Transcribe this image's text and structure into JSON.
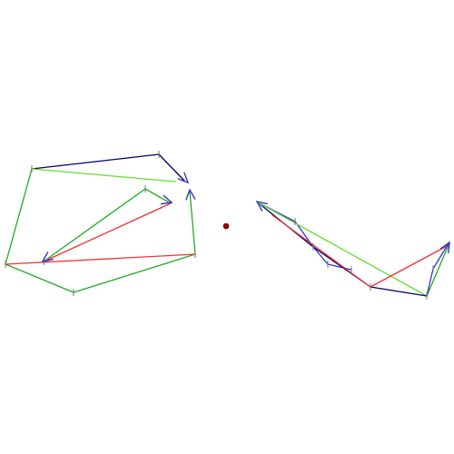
{
  "colors": {
    "background": "#ffffff",
    "navy": "#000066",
    "blue": "#3333cc",
    "green": "#22aa22",
    "lime": "#66dd33",
    "red": "#ee3333",
    "tick": "#777777",
    "center_dot": "#aa0000"
  },
  "diagram": {
    "center_point": [
      249,
      249
    ],
    "segments": [
      {
        "id": "L-top-dark",
        "from": [
          35,
          186
        ],
        "to": [
          175,
          170
        ],
        "color": "navy"
      },
      {
        "id": "L-top-dark-2",
        "from": [
          175,
          170
        ],
        "to": [
          203,
          199
        ],
        "color": "navy"
      },
      {
        "id": "L-top-green",
        "from": [
          35,
          186
        ],
        "to": [
          193,
          200
        ],
        "color": "lime"
      },
      {
        "id": "L-left-outer",
        "from": [
          35,
          186
        ],
        "to": [
          6,
          291
        ],
        "color": "green"
      },
      {
        "id": "L-bottom-1",
        "from": [
          6,
          291
        ],
        "to": [
          81,
          322
        ],
        "color": "green"
      },
      {
        "id": "L-bottom-2",
        "from": [
          81,
          322
        ],
        "to": [
          215,
          280
        ],
        "color": "green"
      },
      {
        "id": "L-red-long",
        "from": [
          6,
          291
        ],
        "to": [
          215,
          280
        ],
        "color": "red"
      },
      {
        "id": "L-right-edge",
        "from": [
          215,
          280
        ],
        "to": [
          209,
          210
        ],
        "color": "green"
      },
      {
        "id": "L-inner-green-1",
        "from": [
          48,
          288
        ],
        "to": [
          160,
          208
        ],
        "color": "green"
      },
      {
        "id": "L-inner-green-2",
        "from": [
          160,
          208
        ],
        "to": [
          188,
          224
        ],
        "color": "green"
      },
      {
        "id": "L-red-inner",
        "from": [
          48,
          288
        ],
        "to": [
          188,
          224
        ],
        "color": "red"
      },
      {
        "id": "R-navy-1",
        "from": [
          284,
          223
        ],
        "to": [
          345,
          272
        ],
        "color": "navy"
      },
      {
        "id": "R-blue-1",
        "from": [
          284,
          223
        ],
        "to": [
          325,
          244
        ],
        "color": "blue"
      },
      {
        "id": "R-blue-2",
        "from": [
          325,
          244
        ],
        "to": [
          345,
          272
        ],
        "color": "blue"
      },
      {
        "id": "R-blue-3",
        "from": [
          345,
          272
        ],
        "to": [
          361,
          291
        ],
        "color": "blue"
      },
      {
        "id": "R-blue-4",
        "from": [
          361,
          291
        ],
        "to": [
          387,
          297
        ],
        "color": "blue"
      },
      {
        "id": "R-navy-2",
        "from": [
          345,
          272
        ],
        "to": [
          408,
          316
        ],
        "color": "navy"
      },
      {
        "id": "R-green-long",
        "from": [
          284,
          223
        ],
        "to": [
          470,
          326
        ],
        "color": "lime"
      },
      {
        "id": "R-red-1",
        "from": [
          300,
          237
        ],
        "to": [
          408,
          316
        ],
        "color": "red"
      },
      {
        "id": "R-navy-3",
        "from": [
          408,
          316
        ],
        "to": [
          470,
          326
        ],
        "color": "navy"
      },
      {
        "id": "R-red-2",
        "from": [
          408,
          316
        ],
        "to": [
          494,
          270
        ],
        "color": "red"
      },
      {
        "id": "R-green-up",
        "from": [
          470,
          326
        ],
        "to": [
          494,
          270
        ],
        "color": "green"
      },
      {
        "id": "R-blue-5",
        "from": [
          470,
          326
        ],
        "to": [
          477,
          296
        ],
        "color": "blue"
      },
      {
        "id": "R-blue-6",
        "from": [
          477,
          296
        ],
        "to": [
          494,
          268
        ],
        "color": "blue"
      }
    ],
    "arrowheads": [
      {
        "id": "arrow-left-top",
        "tip": [
          207,
          201
        ],
        "dir": [
          0.7,
          0.7
        ],
        "color": "blue"
      },
      {
        "id": "arrow-left-right-edge",
        "tip": [
          209,
          209
        ],
        "dir": [
          -0.08,
          -1
        ],
        "color": "blue"
      },
      {
        "id": "arrow-left-inner",
        "tip": [
          189,
          223
        ],
        "dir": [
          1,
          0.3
        ],
        "color": "blue"
      },
      {
        "id": "arrow-left-low",
        "tip": [
          47,
          288
        ],
        "dir": [
          -0.8,
          0.6
        ],
        "color": "blue"
      },
      {
        "id": "arrow-right-start",
        "tip": [
          283,
          222
        ],
        "dir": [
          -0.8,
          -0.6
        ],
        "color": "blue"
      },
      {
        "id": "arrow-right-end",
        "tip": [
          495,
          267
        ],
        "dir": [
          0.5,
          -0.85
        ],
        "color": "blue"
      }
    ],
    "ticks": [
      [
        35,
        186
      ],
      [
        175,
        170
      ],
      [
        6,
        291
      ],
      [
        81,
        322
      ],
      [
        215,
        280
      ],
      [
        160,
        208
      ],
      [
        48,
        288
      ],
      [
        325,
        244
      ],
      [
        345,
        272
      ],
      [
        361,
        291
      ],
      [
        387,
        297
      ],
      [
        408,
        316
      ],
      [
        470,
        326
      ],
      [
        477,
        296
      ]
    ]
  }
}
